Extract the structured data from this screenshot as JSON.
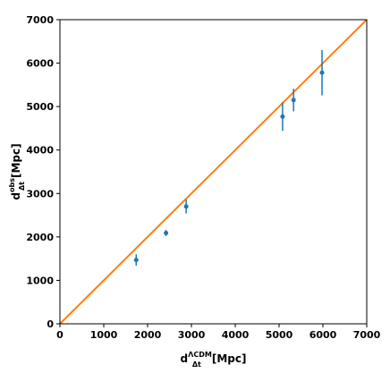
{
  "chart_data": {
    "type": "scatter",
    "xlabel": {
      "base": "d",
      "superscript": "ΛCDM",
      "subscript": "Δt",
      "unit": "[Mpc]"
    },
    "ylabel": {
      "base": "d",
      "superscript": "obs",
      "subscript": "Δt",
      "unit": "[Mpc]"
    },
    "xlim": [
      0,
      7000
    ],
    "ylim": [
      0,
      7000
    ],
    "xticks": [
      "0",
      "1000",
      "2000",
      "3000",
      "4000",
      "5000",
      "6000",
      "7000"
    ],
    "yticks": [
      "0",
      "1000",
      "2000",
      "3000",
      "4000",
      "5000",
      "6000",
      "7000"
    ],
    "grid": false,
    "series": [
      {
        "kind": "errorbar",
        "color": "#1f77b4",
        "points": [
          {
            "x": 1740,
            "y": 1470,
            "err": 130
          },
          {
            "x": 2420,
            "y": 2090,
            "err": 70
          },
          {
            "x": 2880,
            "y": 2700,
            "err": 160
          },
          {
            "x": 5080,
            "y": 4770,
            "err": 330
          },
          {
            "x": 5330,
            "y": 5150,
            "err": 260
          },
          {
            "x": 5980,
            "y": 5780,
            "err": 520
          }
        ]
      },
      {
        "kind": "line",
        "color": "#ff7f0e",
        "points": [
          {
            "x": 0,
            "y": 0
          },
          {
            "x": 7000,
            "y": 7000
          }
        ]
      }
    ]
  }
}
